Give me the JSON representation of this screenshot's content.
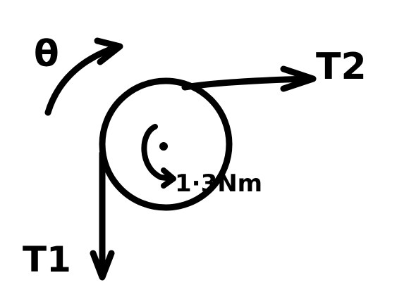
{
  "diagram": {
    "rotation_label": "θ",
    "tension_right_label": "T2",
    "tension_down_label": "T1",
    "torque_label": "1·3Nm"
  },
  "colors": {
    "ink": "#000000",
    "background": "#ffffff"
  }
}
